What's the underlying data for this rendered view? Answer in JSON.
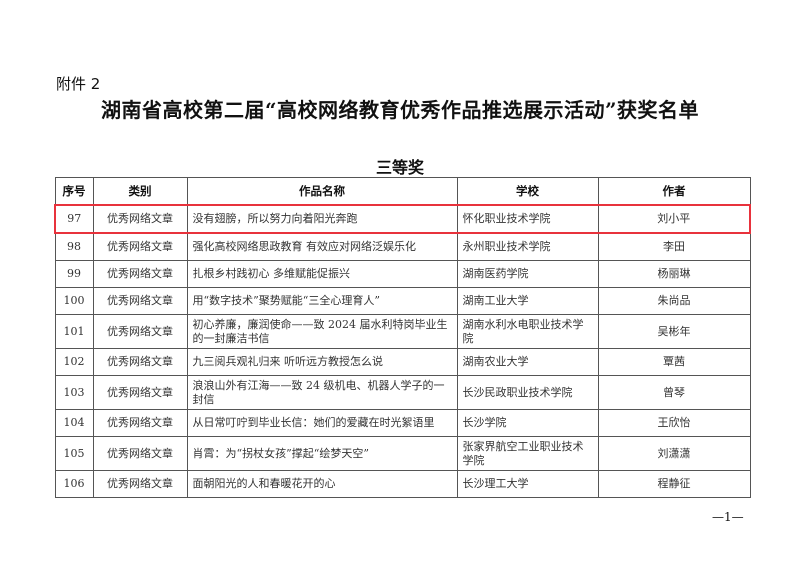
{
  "attachment": "附件 2",
  "title": "湖南省高校第二届“高校网络教育优秀作品推选展示活动”获奖名单",
  "subtitle": "三等奖",
  "headers": [
    "序号",
    "类别",
    "作品名称",
    "学校",
    "作者"
  ],
  "highlight_color": "#e8323c",
  "rows": [
    [
      "97",
      "优秀网络文章",
      "没有翅膀，所以努力向着阳光奔跑",
      "怀化职业技术学院",
      "刘小平"
    ],
    [
      "98",
      "优秀网络文章",
      "强化高校网络思政教育 有效应对网络泛娱乐化",
      "永州职业技术学院",
      "李田"
    ],
    [
      "99",
      "优秀网络文章",
      "扎根乡村践初心 多维赋能促振兴",
      "湖南医药学院",
      "杨丽琳"
    ],
    [
      "100",
      "优秀网络文章",
      "用“数字技术”聚势赋能“三全心理育人”",
      "湖南工业大学",
      "朱尚品"
    ],
    [
      "101",
      "优秀网络文章",
      "初心养廉，廉润使命——致 2024 届水利特岗毕业生的一封廉洁书信",
      "湖南水利水电职业技术学院",
      "吴彬年"
    ],
    [
      "102",
      "优秀网络文章",
      "九三阅兵观礼归来 听听远方教授怎么说",
      "湖南农业大学",
      "覃茜"
    ],
    [
      "103",
      "优秀网络文章",
      "浪浪山外有江海——致 24 级机电、机器人学子的一封信",
      "长沙民政职业技术学院",
      "曾琴"
    ],
    [
      "104",
      "优秀网络文章",
      "从日常叮咛到毕业长信：她们的爱藏在时光絮语里",
      "长沙学院",
      "王欣怡"
    ],
    [
      "105",
      "优秀网络文章",
      "肖霄：为“拐杖女孩”撑起“绘梦天空”",
      "张家界航空工业职业技术学院",
      "刘潇潇"
    ],
    [
      "106",
      "优秀网络文章",
      "面朝阳光的人和春暖花开的心",
      "长沙理工大学",
      "程静征"
    ]
  ],
  "page_number": "—1—"
}
